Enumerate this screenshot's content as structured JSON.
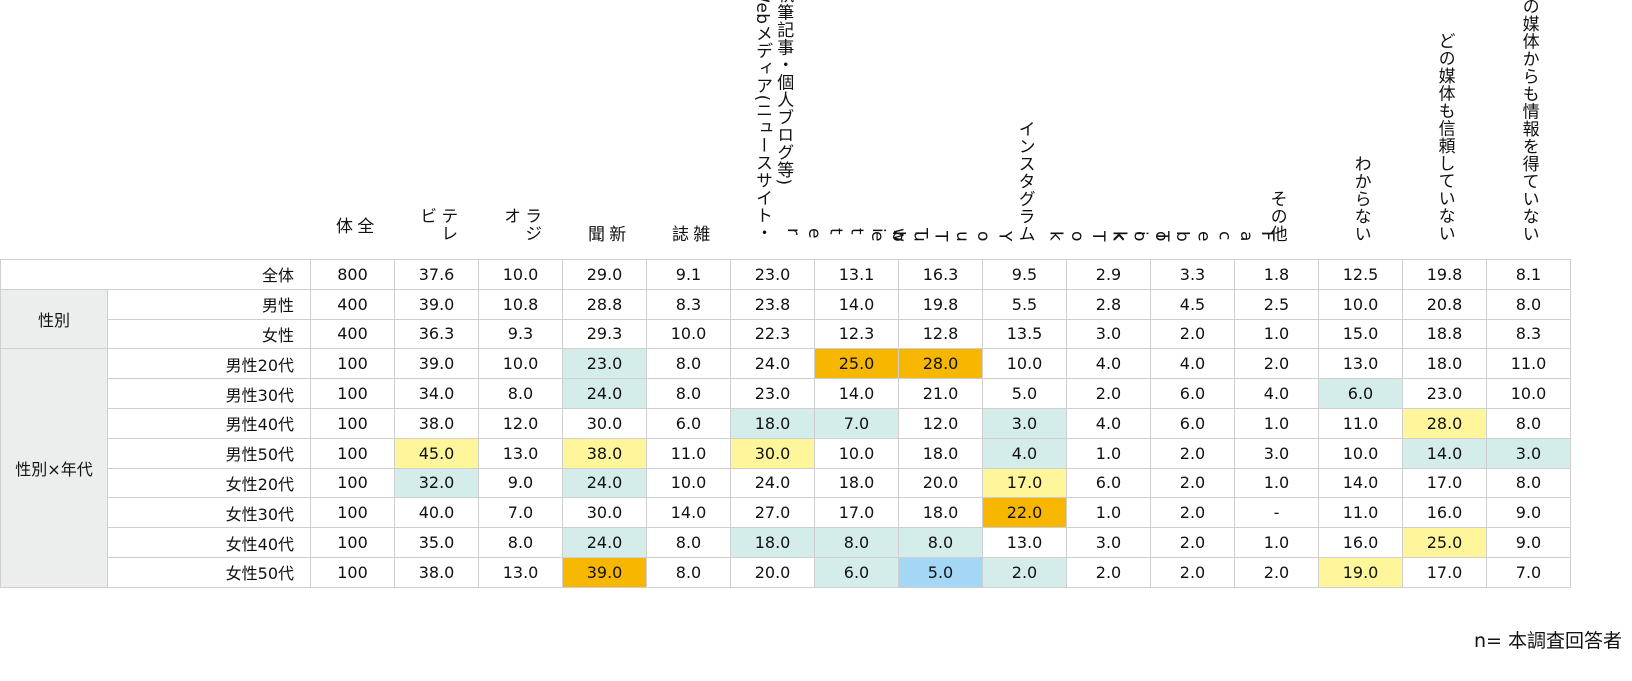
{
  "chart_data": {
    "type": "table",
    "title": "",
    "columns": [
      "全体",
      "テレビ",
      "ラジオ",
      "新聞",
      "雑誌",
      "Webメディア(ニュースサイト・執筆記事・個人ブログ等)",
      "Twitter",
      "YouTube",
      "インスタグラム",
      "TikTok",
      "Facebook",
      "その他",
      "わからない",
      "どの媒体も信頼していない",
      "どの媒体からも情報を得ていない"
    ],
    "header_display": [
      "全\n体",
      "テレ\nビ",
      "ラジ\nオ",
      "新\n聞",
      "雑\n誌",
      "執筆記事・個人ブログ等)\nWebメディア(ニュースサイト・",
      "T\nw\ni\nt\nt\ne\nr",
      "Y\no\nu\nT\nu\nb\ne",
      "インスタグラム",
      "T\ni\nk\nT\no\nk",
      "F\na\nc\ne\nb\no\no\nk",
      "その他",
      "わからない",
      "どの媒体も信頼していない",
      "どの媒体からも情報を得ていない"
    ],
    "groups": [
      {
        "name": "",
        "rows": [
          0
        ]
      },
      {
        "name": "性別",
        "rows": [
          1,
          2
        ]
      },
      {
        "name": "性別×年代",
        "rows": [
          3,
          4,
          5,
          6,
          7,
          8,
          9,
          10
        ]
      }
    ],
    "rows": [
      {
        "label": "全体",
        "values": [
          "800",
          "37.6",
          "10.0",
          "29.0",
          "9.1",
          "23.0",
          "13.1",
          "16.3",
          "9.5",
          "2.9",
          "3.3",
          "1.8",
          "12.5",
          "19.8",
          "8.1"
        ],
        "highlight": [
          "",
          "",
          "",
          "",
          "",
          "",
          "",
          "",
          "",
          "",
          "",
          "",
          "",
          "",
          ""
        ]
      },
      {
        "label": "男性",
        "values": [
          "400",
          "39.0",
          "10.8",
          "28.8",
          "8.3",
          "23.8",
          "14.0",
          "19.8",
          "5.5",
          "2.8",
          "4.5",
          "2.5",
          "10.0",
          "20.8",
          "8.0"
        ],
        "highlight": [
          "",
          "",
          "",
          "",
          "",
          "",
          "",
          "",
          "",
          "",
          "",
          "",
          "",
          "",
          ""
        ]
      },
      {
        "label": "女性",
        "values": [
          "400",
          "36.3",
          "9.3",
          "29.3",
          "10.0",
          "22.3",
          "12.3",
          "12.8",
          "13.5",
          "3.0",
          "2.0",
          "1.0",
          "15.0",
          "18.8",
          "8.3"
        ],
        "highlight": [
          "",
          "",
          "",
          "",
          "",
          "",
          "",
          "",
          "",
          "",
          "",
          "",
          "",
          "",
          ""
        ]
      },
      {
        "label": "男性20代",
        "values": [
          "100",
          "39.0",
          "10.0",
          "23.0",
          "8.0",
          "24.0",
          "25.0",
          "28.0",
          "10.0",
          "4.0",
          "4.0",
          "2.0",
          "13.0",
          "18.0",
          "11.0"
        ],
        "highlight": [
          "",
          "",
          "",
          "teal",
          "",
          "",
          "orange",
          "orange",
          "",
          "",
          "",
          "",
          "",
          "",
          ""
        ]
      },
      {
        "label": "男性30代",
        "values": [
          "100",
          "34.0",
          "8.0",
          "24.0",
          "8.0",
          "23.0",
          "14.0",
          "21.0",
          "5.0",
          "2.0",
          "6.0",
          "4.0",
          "6.0",
          "23.0",
          "10.0"
        ],
        "highlight": [
          "",
          "",
          "",
          "teal",
          "",
          "",
          "",
          "",
          "",
          "",
          "",
          "",
          "teal",
          "",
          ""
        ]
      },
      {
        "label": "男性40代",
        "values": [
          "100",
          "38.0",
          "12.0",
          "30.0",
          "6.0",
          "18.0",
          "7.0",
          "12.0",
          "3.0",
          "4.0",
          "6.0",
          "1.0",
          "11.0",
          "28.0",
          "8.0"
        ],
        "highlight": [
          "",
          "",
          "",
          "",
          "",
          "teal",
          "teal",
          "",
          "teal",
          "",
          "",
          "",
          "",
          "yellow",
          ""
        ]
      },
      {
        "label": "男性50代",
        "values": [
          "100",
          "45.0",
          "13.0",
          "38.0",
          "11.0",
          "30.0",
          "10.0",
          "18.0",
          "4.0",
          "1.0",
          "2.0",
          "3.0",
          "10.0",
          "14.0",
          "3.0"
        ],
        "highlight": [
          "",
          "yellow",
          "",
          "yellow",
          "",
          "yellow",
          "",
          "",
          "teal",
          "",
          "",
          "",
          "",
          "teal",
          "teal"
        ]
      },
      {
        "label": "女性20代",
        "values": [
          "100",
          "32.0",
          "9.0",
          "24.0",
          "10.0",
          "24.0",
          "18.0",
          "20.0",
          "17.0",
          "6.0",
          "2.0",
          "1.0",
          "14.0",
          "17.0",
          "8.0"
        ],
        "highlight": [
          "",
          "teal",
          "",
          "teal",
          "",
          "",
          "",
          "",
          "yellow",
          "",
          "",
          "",
          "",
          "",
          ""
        ]
      },
      {
        "label": "女性30代",
        "values": [
          "100",
          "40.0",
          "7.0",
          "30.0",
          "14.0",
          "27.0",
          "17.0",
          "18.0",
          "22.0",
          "1.0",
          "2.0",
          "-",
          "11.0",
          "16.0",
          "9.0"
        ],
        "highlight": [
          "",
          "",
          "",
          "",
          "",
          "",
          "",
          "",
          "orange",
          "",
          "",
          "",
          "",
          "",
          ""
        ]
      },
      {
        "label": "女性40代",
        "values": [
          "100",
          "35.0",
          "8.0",
          "24.0",
          "8.0",
          "18.0",
          "8.0",
          "8.0",
          "13.0",
          "3.0",
          "2.0",
          "1.0",
          "16.0",
          "25.0",
          "9.0"
        ],
        "highlight": [
          "",
          "",
          "",
          "teal",
          "",
          "teal",
          "teal",
          "teal",
          "",
          "",
          "",
          "",
          "",
          "yellow",
          ""
        ]
      },
      {
        "label": "女性50代",
        "values": [
          "100",
          "38.0",
          "13.0",
          "39.0",
          "8.0",
          "20.0",
          "6.0",
          "5.0",
          "2.0",
          "2.0",
          "2.0",
          "2.0",
          "19.0",
          "17.0",
          "7.0"
        ],
        "highlight": [
          "",
          "",
          "",
          "orange",
          "",
          "",
          "teal",
          "blue",
          "teal",
          "",
          "",
          "",
          "yellow",
          "",
          ""
        ]
      }
    ],
    "colors": {
      "teal": "#d4ecea",
      "yellow": "#fff59a",
      "orange": "#f7b600",
      "blue": "#a4d6f5",
      "group_bg": "#eceeed",
      "border": "#cfcfcf"
    },
    "note": "n= 本調査回答者"
  }
}
